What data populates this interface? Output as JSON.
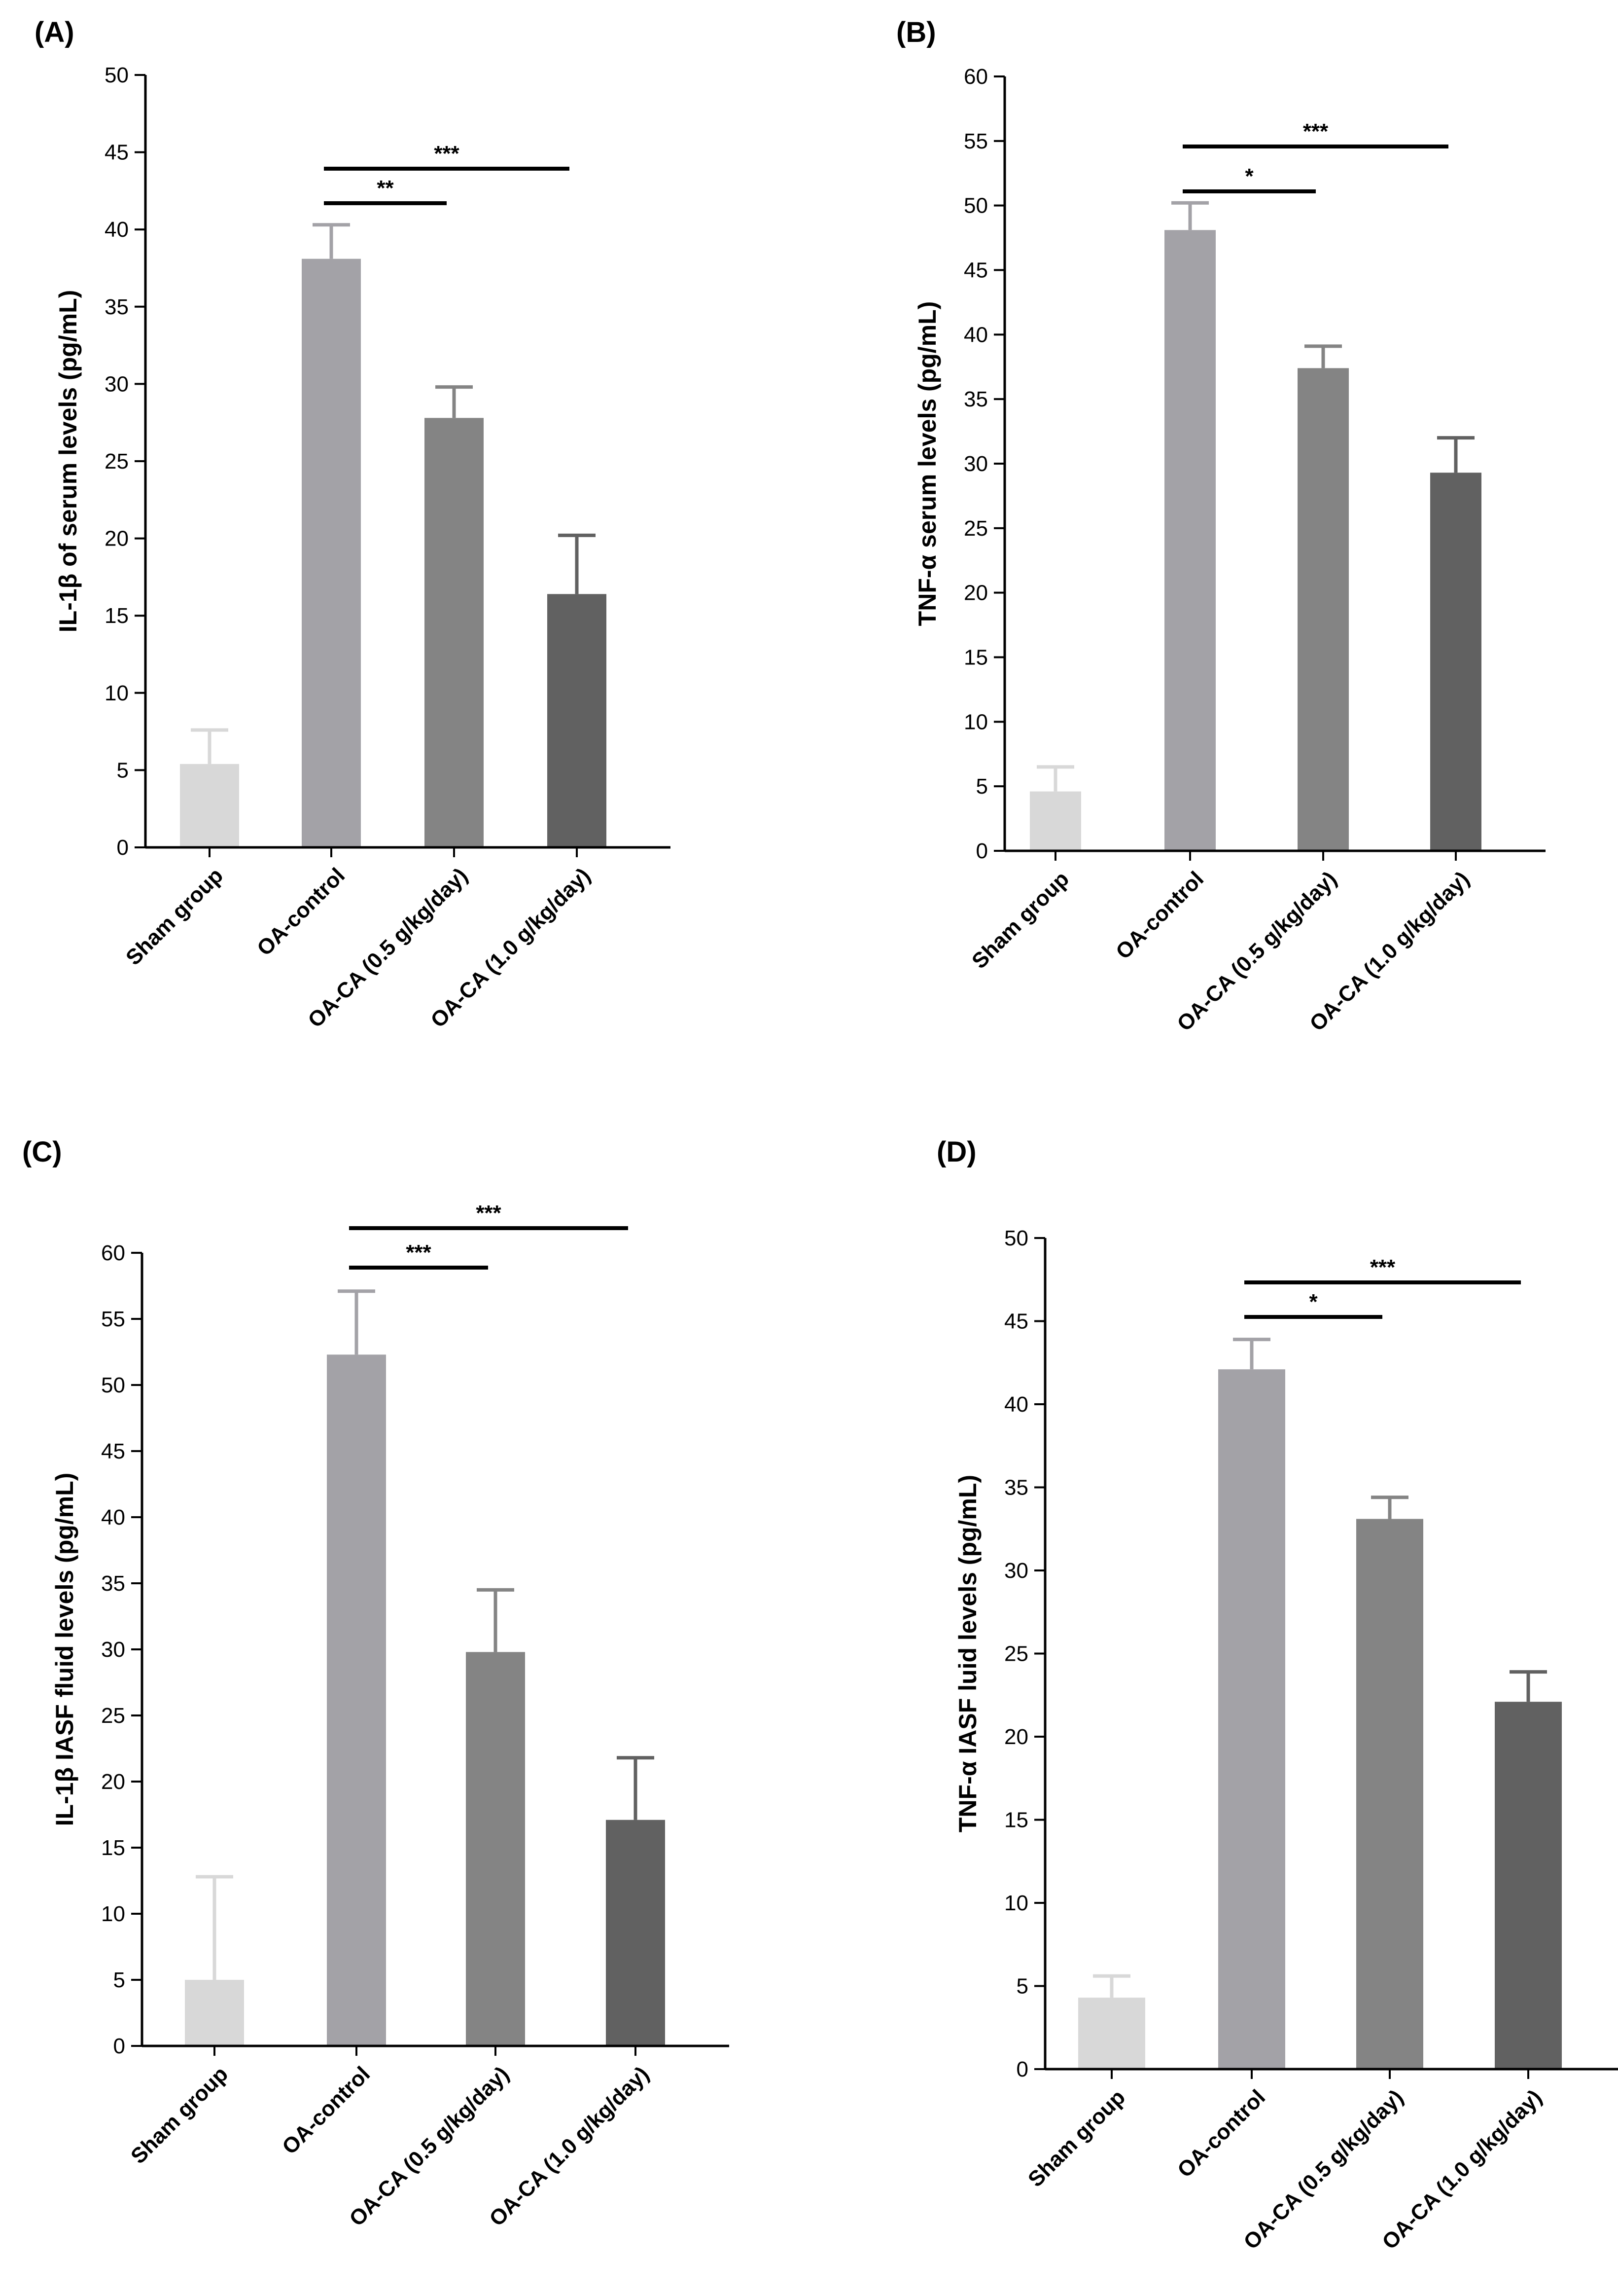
{
  "colors": {
    "sham": "#d8d8d8",
    "oa_control": "#a3a2a7",
    "oa_ca_low": "#848484",
    "oa_ca_high": "#616161",
    "axis": "#000000"
  },
  "chart_data": [
    {
      "panel": "(A)",
      "type": "bar",
      "title": "",
      "xlabel": "",
      "ylabel": "IL-1β of serum levels (pg/mL)",
      "ylim": [
        0,
        50
      ],
      "yticks": [
        0,
        5,
        10,
        15,
        20,
        25,
        30,
        35,
        40,
        45,
        50
      ],
      "categories": [
        "Sham group",
        "OA-control",
        "OA-CA (0.5 g/kg/day)",
        "OA-CA (1.0 g/kg/day)"
      ],
      "values": [
        5.4,
        38.1,
        27.8,
        16.4
      ],
      "errors": [
        2.2,
        2.2,
        2.0,
        3.8
      ],
      "significance": [
        {
          "from": 1,
          "to": 2,
          "label": "**"
        },
        {
          "from": 1,
          "to": 3,
          "label": "***"
        }
      ]
    },
    {
      "panel": "(B)",
      "type": "bar",
      "title": "",
      "xlabel": "",
      "ylabel": "TNF-α serum levels (pg/mL)",
      "ylim": [
        0,
        60
      ],
      "yticks": [
        0,
        5,
        10,
        15,
        20,
        25,
        30,
        35,
        40,
        45,
        50,
        55,
        60
      ],
      "categories": [
        "Sham group",
        "OA-control",
        "OA-CA (0.5 g/kg/day)",
        "OA-CA (1.0 g/kg/day)"
      ],
      "values": [
        4.6,
        48.1,
        37.4,
        29.3
      ],
      "errors": [
        1.9,
        2.1,
        1.7,
        2.7
      ],
      "significance": [
        {
          "from": 1,
          "to": 2,
          "label": "*"
        },
        {
          "from": 1,
          "to": 3,
          "label": "***"
        }
      ]
    },
    {
      "panel": "(C)",
      "type": "bar",
      "title": "",
      "xlabel": "",
      "ylabel": "IL-1β IASF fluid levels (pg/mL)",
      "ylim": [
        0,
        60
      ],
      "yticks": [
        0,
        5,
        10,
        15,
        20,
        25,
        30,
        35,
        40,
        45,
        50,
        55,
        60
      ],
      "categories": [
        "Sham group",
        "OA-control",
        "OA-CA (0.5 g/kg/day)",
        "OA-CA (1.0 g/kg/day)"
      ],
      "values": [
        5.0,
        52.3,
        29.8,
        17.1
      ],
      "errors": [
        7.8,
        4.8,
        4.7,
        4.7
      ],
      "significance": [
        {
          "from": 1,
          "to": 2,
          "label": "***"
        },
        {
          "from": 1,
          "to": 3,
          "label": "***"
        }
      ]
    },
    {
      "panel": "(D)",
      "type": "bar",
      "title": "",
      "xlabel": "",
      "ylabel": "TNF-α IASF luid levels (pg/mL)",
      "ylim": [
        0,
        50
      ],
      "yticks": [
        0,
        5,
        10,
        15,
        20,
        25,
        30,
        35,
        40,
        45,
        50
      ],
      "categories": [
        "Sham group",
        "OA-control",
        "OA-CA (0.5 g/kg/day)",
        "OA-CA (1.0 g/kg/day)"
      ],
      "values": [
        4.3,
        42.1,
        33.1,
        22.1
      ],
      "errors": [
        1.3,
        1.8,
        1.3,
        1.8
      ],
      "significance": [
        {
          "from": 1,
          "to": 2,
          "label": "*"
        },
        {
          "from": 1,
          "to": 3,
          "label": "***"
        }
      ]
    }
  ]
}
